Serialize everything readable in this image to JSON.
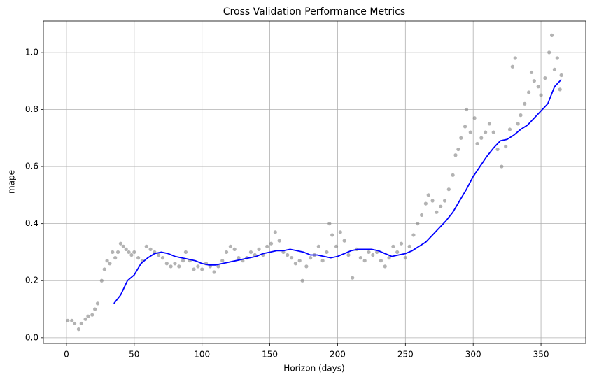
{
  "chart_data": {
    "type": "scatter",
    "title": "Cross Validation Performance Metrics",
    "xlabel": "Horizon (days)",
    "ylabel": "mape",
    "xlim": [
      -17,
      383
    ],
    "ylim": [
      -0.02,
      1.11
    ],
    "xticks": [
      0,
      50,
      100,
      150,
      200,
      250,
      300,
      350
    ],
    "yticks": [
      {
        "value": 0,
        "label": "0.0"
      },
      {
        "value": 0.2,
        "label": "0.2"
      },
      {
        "value": 0.4,
        "label": "0.4"
      },
      {
        "value": 0.6,
        "label": "0.6"
      },
      {
        "value": 0.8,
        "label": "0.8"
      },
      {
        "value": 1,
        "label": "1.0"
      }
    ],
    "grid": true,
    "series": [
      {
        "mode": "markers",
        "color": "#808080",
        "x": [
          1,
          4,
          6,
          9,
          11,
          14,
          16,
          19,
          21,
          23,
          26,
          28,
          30,
          32,
          34,
          36,
          38,
          40,
          42,
          44,
          46,
          48,
          50,
          53,
          56,
          59,
          62,
          65,
          68,
          71,
          74,
          77,
          80,
          83,
          86,
          88,
          91,
          94,
          97,
          100,
          103,
          106,
          109,
          112,
          115,
          118,
          121,
          124,
          127,
          130,
          133,
          136,
          139,
          142,
          145,
          148,
          151,
          154,
          157,
          160,
          163,
          166,
          169,
          172,
          174,
          177,
          180,
          183,
          186,
          189,
          192,
          194,
          196,
          199,
          202,
          205,
          208,
          211,
          214,
          217,
          220,
          223,
          226,
          229,
          232,
          235,
          238,
          241,
          244,
          247,
          250,
          253,
          256,
          259,
          262,
          265,
          267,
          270,
          273,
          276,
          279,
          282,
          285,
          287,
          289,
          291,
          294,
          295,
          298,
          301,
          303,
          306,
          309,
          312,
          315,
          318,
          321,
          324,
          327,
          329,
          331,
          333,
          335,
          338,
          341,
          343,
          345,
          348,
          350,
          353,
          356,
          358,
          360,
          362,
          364,
          365
        ],
        "y": [
          0.06,
          0.06,
          0.05,
          0.03,
          0.05,
          0.065,
          0.075,
          0.08,
          0.1,
          0.12,
          0.2,
          0.24,
          0.27,
          0.26,
          0.3,
          0.28,
          0.3,
          0.33,
          0.32,
          0.31,
          0.3,
          0.29,
          0.3,
          0.28,
          0.27,
          0.32,
          0.31,
          0.3,
          0.29,
          0.28,
          0.26,
          0.25,
          0.26,
          0.25,
          0.27,
          0.3,
          0.27,
          0.24,
          0.25,
          0.24,
          0.26,
          0.25,
          0.23,
          0.25,
          0.27,
          0.3,
          0.32,
          0.31,
          0.28,
          0.27,
          0.28,
          0.3,
          0.29,
          0.31,
          0.29,
          0.32,
          0.33,
          0.37,
          0.34,
          0.3,
          0.29,
          0.28,
          0.26,
          0.27,
          0.2,
          0.25,
          0.28,
          0.29,
          0.32,
          0.27,
          0.3,
          0.4,
          0.36,
          0.32,
          0.37,
          0.34,
          0.29,
          0.21,
          0.31,
          0.28,
          0.27,
          0.3,
          0.29,
          0.3,
          0.27,
          0.25,
          0.28,
          0.32,
          0.3,
          0.33,
          0.28,
          0.32,
          0.36,
          0.4,
          0.43,
          0.47,
          0.5,
          0.48,
          0.44,
          0.46,
          0.48,
          0.52,
          0.57,
          0.64,
          0.66,
          0.7,
          0.74,
          0.8,
          0.72,
          0.77,
          0.68,
          0.7,
          0.72,
          0.75,
          0.72,
          0.66,
          0.6,
          0.67,
          0.73,
          0.95,
          0.98,
          0.75,
          0.78,
          0.82,
          0.86,
          0.93,
          0.9,
          0.88,
          0.85,
          0.91,
          1.0,
          1.06,
          0.94,
          0.98,
          0.87,
          0.92
        ]
      },
      {
        "mode": "line",
        "color": "#0000ff",
        "x": [
          35,
          40,
          45,
          50,
          55,
          60,
          65,
          70,
          75,
          80,
          85,
          90,
          95,
          100,
          105,
          110,
          115,
          120,
          125,
          130,
          135,
          140,
          145,
          150,
          155,
          160,
          165,
          170,
          175,
          180,
          185,
          190,
          195,
          200,
          205,
          210,
          215,
          220,
          225,
          230,
          235,
          240,
          245,
          250,
          255,
          260,
          265,
          270,
          275,
          280,
          285,
          290,
          295,
          300,
          305,
          310,
          315,
          320,
          325,
          330,
          335,
          340,
          345,
          350,
          355,
          360,
          365
        ],
        "y": [
          0.12,
          0.15,
          0.2,
          0.22,
          0.26,
          0.28,
          0.295,
          0.3,
          0.295,
          0.285,
          0.28,
          0.275,
          0.27,
          0.26,
          0.255,
          0.255,
          0.26,
          0.265,
          0.27,
          0.275,
          0.28,
          0.285,
          0.295,
          0.3,
          0.305,
          0.305,
          0.31,
          0.305,
          0.3,
          0.29,
          0.29,
          0.285,
          0.28,
          0.285,
          0.295,
          0.305,
          0.31,
          0.31,
          0.31,
          0.305,
          0.295,
          0.285,
          0.29,
          0.295,
          0.305,
          0.32,
          0.335,
          0.36,
          0.385,
          0.41,
          0.44,
          0.48,
          0.52,
          0.565,
          0.6,
          0.635,
          0.665,
          0.69,
          0.695,
          0.71,
          0.73,
          0.745,
          0.77,
          0.795,
          0.82,
          0.88,
          0.905
        ]
      }
    ]
  }
}
